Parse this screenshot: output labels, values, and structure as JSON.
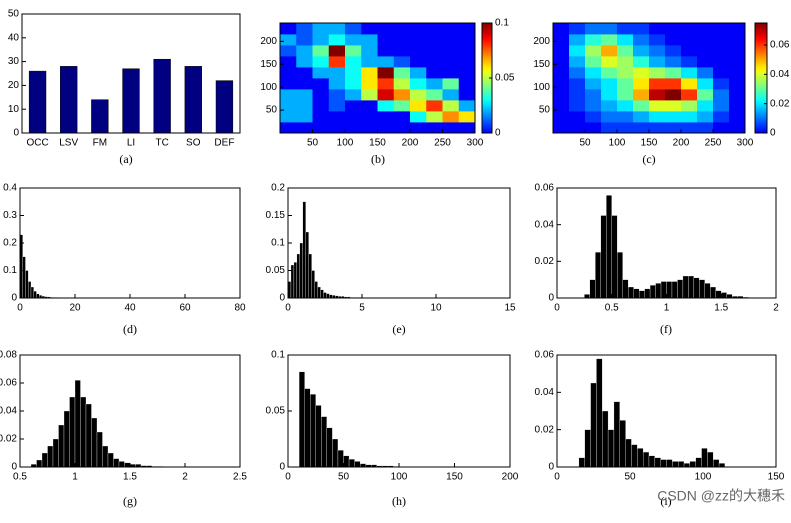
{
  "chart_data": [
    {
      "type": "bar",
      "caption": "(a)",
      "color": "#000080",
      "categories": [
        "OCC",
        "LSV",
        "FM",
        "LI",
        "TC",
        "SO",
        "DEF"
      ],
      "values": [
        26,
        28,
        14,
        27,
        31,
        28,
        22
      ],
      "ylim": [
        0,
        50
      ],
      "yticks": [
        0,
        10,
        20,
        30,
        40,
        50
      ]
    },
    {
      "type": "heatmap",
      "caption": "(b)",
      "colormap": "jet",
      "xlim": [
        0,
        300
      ],
      "ylim": [
        0,
        240
      ],
      "xticks": [
        50,
        100,
        150,
        200,
        250,
        300
      ],
      "yticks": [
        50,
        100,
        150,
        200
      ],
      "clim": [
        0,
        0.1
      ],
      "cticks": [
        0,
        0.05,
        0.1
      ],
      "z": [
        [
          0,
          0,
          0,
          0,
          0,
          0,
          0,
          0,
          0,
          0,
          0,
          0
        ],
        [
          0.02,
          0.02,
          0,
          0,
          0,
          0,
          0,
          0,
          0.03,
          0.05,
          0.07,
          0.06
        ],
        [
          0.02,
          0.02,
          0,
          0.01,
          0,
          0,
          0.03,
          0.04,
          0.06,
          0.08,
          0.05,
          0.02
        ],
        [
          0.02,
          0.02,
          0,
          0.01,
          0.02,
          0.05,
          0.09,
          0.07,
          0.05,
          0.04,
          0.02,
          0
        ],
        [
          0,
          0,
          0,
          0.02,
          0.03,
          0.06,
          0.08,
          0.05,
          0.03,
          0.02,
          0.04,
          0
        ],
        [
          0,
          0,
          0.02,
          0.02,
          0.03,
          0.06,
          0.1,
          0.04,
          0.02,
          0,
          0,
          0
        ],
        [
          0,
          0.02,
          0.03,
          0.08,
          0.03,
          0.02,
          0.02,
          0.01,
          0,
          0,
          0,
          0
        ],
        [
          0.01,
          0.02,
          0.04,
          0.1,
          0.04,
          0.02,
          0,
          0,
          0,
          0,
          0,
          0
        ],
        [
          0.02,
          0.01,
          0.02,
          0.03,
          0.02,
          0.02,
          0,
          0,
          0,
          0,
          0,
          0
        ],
        [
          0,
          0.01,
          0.02,
          0.02,
          0.01,
          0,
          0,
          0,
          0,
          0,
          0,
          0
        ]
      ]
    },
    {
      "type": "heatmap",
      "caption": "(c)",
      "colormap": "jet",
      "xlim": [
        0,
        300
      ],
      "ylim": [
        0,
        240
      ],
      "xticks": [
        50,
        100,
        150,
        200,
        250,
        300
      ],
      "yticks": [
        50,
        100,
        150,
        200
      ],
      "clim": [
        0,
        0.075
      ],
      "cticks": [
        0,
        0.02,
        0.04,
        0.06
      ],
      "z": [
        [
          0,
          0,
          0,
          0.005,
          0.005,
          0.005,
          0.005,
          0.005,
          0.005,
          0.005,
          0,
          0
        ],
        [
          0,
          0,
          0.005,
          0.01,
          0.01,
          0.015,
          0.02,
          0.02,
          0.02,
          0.015,
          0.005,
          0
        ],
        [
          0,
          0.005,
          0.01,
          0.015,
          0.02,
          0.03,
          0.04,
          0.04,
          0.035,
          0.02,
          0.01,
          0
        ],
        [
          0,
          0.005,
          0.01,
          0.02,
          0.03,
          0.05,
          0.07,
          0.075,
          0.06,
          0.03,
          0.01,
          0
        ],
        [
          0,
          0.005,
          0.015,
          0.02,
          0.03,
          0.045,
          0.06,
          0.06,
          0.045,
          0.02,
          0.005,
          0
        ],
        [
          0,
          0.01,
          0.02,
          0.03,
          0.035,
          0.04,
          0.035,
          0.03,
          0.02,
          0.01,
          0,
          0
        ],
        [
          0,
          0.015,
          0.03,
          0.04,
          0.035,
          0.025,
          0.015,
          0.01,
          0.005,
          0,
          0,
          0
        ],
        [
          0,
          0.02,
          0.035,
          0.05,
          0.03,
          0.015,
          0.01,
          0.005,
          0,
          0,
          0,
          0
        ],
        [
          0,
          0.015,
          0.025,
          0.03,
          0.02,
          0.01,
          0.005,
          0,
          0,
          0,
          0,
          0
        ],
        [
          0,
          0.005,
          0.01,
          0.01,
          0.005,
          0.005,
          0,
          0,
          0,
          0,
          0,
          0
        ]
      ]
    },
    {
      "type": "histogram",
      "caption": "(d)",
      "color": "#000000",
      "xlim": [
        0,
        80
      ],
      "ylim": [
        0,
        0.4
      ],
      "xticks": [
        0,
        20,
        40,
        60,
        80
      ],
      "yticks": [
        0,
        0.1,
        0.2,
        0.3,
        0.4
      ],
      "bins": [
        0,
        1,
        2,
        3,
        4,
        5,
        6,
        7,
        8,
        9,
        10,
        11,
        12,
        13,
        14,
        15,
        16,
        17,
        18,
        19,
        20
      ],
      "counts": [
        0.23,
        0.15,
        0.1,
        0.06,
        0.04,
        0.025,
        0.015,
        0.01,
        0.007,
        0.005,
        0.004,
        0.003,
        0.002,
        0.002,
        0.001,
        0.001,
        0.001,
        0.001,
        0,
        0
      ]
    },
    {
      "type": "histogram",
      "caption": "(e)",
      "color": "#000000",
      "xlim": [
        0,
        15
      ],
      "ylim": [
        0,
        0.2
      ],
      "xticks": [
        0,
        5,
        10,
        15
      ],
      "yticks": [
        0,
        0.05,
        0.1,
        0.15,
        0.2
      ],
      "bins": [
        0,
        0.2,
        0.4,
        0.6,
        0.8,
        1,
        1.2,
        1.4,
        1.6,
        1.8,
        2,
        2.2,
        2.4,
        2.6,
        2.8,
        3,
        3.2,
        3.4,
        3.6,
        3.8,
        4,
        4.2,
        4.4,
        4.6,
        4.8,
        5
      ],
      "counts": [
        0.03,
        0.06,
        0.065,
        0.08,
        0.1,
        0.175,
        0.12,
        0.08,
        0.05,
        0.03,
        0.02,
        0.015,
        0.01,
        0.008,
        0.006,
        0.005,
        0.004,
        0.003,
        0.003,
        0.002,
        0.002,
        0.001,
        0.001,
        0.001,
        0.001
      ]
    },
    {
      "type": "histogram",
      "caption": "(f)",
      "color": "#000000",
      "xlim": [
        0,
        2
      ],
      "ylim": [
        0,
        0.06
      ],
      "xticks": [
        0,
        0.5,
        1,
        1.5,
        2
      ],
      "yticks": [
        0,
        0.02,
        0.04,
        0.06
      ],
      "bins": [
        0.25,
        0.3,
        0.35,
        0.4,
        0.45,
        0.5,
        0.55,
        0.6,
        0.65,
        0.7,
        0.75,
        0.8,
        0.85,
        0.9,
        0.95,
        1,
        1.05,
        1.1,
        1.15,
        1.2,
        1.25,
        1.3,
        1.35,
        1.4,
        1.45,
        1.5,
        1.55,
        1.6,
        1.65,
        1.7,
        1.75
      ],
      "counts": [
        0.002,
        0.01,
        0.025,
        0.045,
        0.056,
        0.045,
        0.025,
        0.01,
        0.006,
        0.005,
        0.004,
        0.005,
        0.007,
        0.008,
        0.009,
        0.009,
        0.009,
        0.01,
        0.012,
        0.012,
        0.011,
        0.01,
        0.008,
        0.006,
        0.004,
        0.003,
        0.002,
        0.001,
        0.001,
        0.0005
      ]
    },
    {
      "type": "histogram",
      "caption": "(g)",
      "color": "#000000",
      "xlim": [
        0.5,
        2.5
      ],
      "ylim": [
        0,
        0.08
      ],
      "xticks": [
        0.5,
        1,
        1.5,
        2,
        2.5
      ],
      "yticks": [
        0,
        0.02,
        0.04,
        0.06,
        0.08
      ],
      "bins": [
        0.6,
        0.65,
        0.7,
        0.75,
        0.8,
        0.85,
        0.9,
        0.95,
        1,
        1.05,
        1.1,
        1.15,
        1.2,
        1.25,
        1.3,
        1.35,
        1.4,
        1.45,
        1.5,
        1.55,
        1.6,
        1.65,
        1.7,
        1.75,
        1.8
      ],
      "counts": [
        0.002,
        0.005,
        0.01,
        0.015,
        0.02,
        0.03,
        0.04,
        0.05,
        0.062,
        0.05,
        0.045,
        0.035,
        0.025,
        0.015,
        0.01,
        0.006,
        0.004,
        0.003,
        0.002,
        0.002,
        0.001,
        0.001,
        0.0005,
        0.0005
      ]
    },
    {
      "type": "histogram",
      "caption": "(h)",
      "color": "#000000",
      "xlim": [
        0,
        200
      ],
      "ylim": [
        0,
        0.1
      ],
      "xticks": [
        0,
        50,
        100,
        150,
        200
      ],
      "yticks": [
        0,
        0.05,
        0.1
      ],
      "bins": [
        10,
        15,
        20,
        25,
        30,
        35,
        40,
        45,
        50,
        55,
        60,
        65,
        70,
        75,
        80,
        85,
        90,
        95,
        100
      ],
      "counts": [
        0.085,
        0.07,
        0.065,
        0.055,
        0.045,
        0.035,
        0.025,
        0.015,
        0.01,
        0.007,
        0.005,
        0.003,
        0.002,
        0.002,
        0.001,
        0.001,
        0.001,
        0.0005
      ]
    },
    {
      "type": "histogram",
      "caption": "(i)",
      "color": "#000000",
      "xlim": [
        0,
        150
      ],
      "ylim": [
        0,
        0.06
      ],
      "xticks": [
        0,
        50,
        100,
        150
      ],
      "yticks": [
        0,
        0.02,
        0.04,
        0.06
      ],
      "bins": [
        15,
        19,
        23,
        27,
        31,
        35,
        39,
        43,
        47,
        51,
        55,
        59,
        63,
        67,
        71,
        75,
        79,
        83,
        87,
        91,
        95,
        99,
        103,
        107,
        111,
        115
      ],
      "counts": [
        0.005,
        0.02,
        0.045,
        0.058,
        0.03,
        0.02,
        0.035,
        0.025,
        0.015,
        0.012,
        0.01,
        0.008,
        0.006,
        0.005,
        0.004,
        0.004,
        0.003,
        0.003,
        0.002,
        0.003,
        0.005,
        0.01,
        0.008,
        0.004,
        0.002
      ]
    }
  ],
  "watermark": "CSDN @zz的大穗禾"
}
